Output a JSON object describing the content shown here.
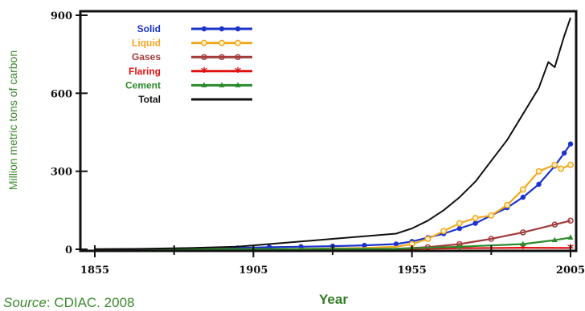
{
  "chart_data": {
    "type": "line",
    "title": "",
    "xlabel": "Year",
    "ylabel": "Million metric tons of carbon",
    "xlim": [
      1850,
      2007
    ],
    "ylim": [
      0,
      900
    ],
    "x_ticks": [
      1855,
      1905,
      1955,
      2005
    ],
    "y_ticks": [
      0,
      300,
      600,
      900
    ],
    "grid": false,
    "legend_position": "top-left",
    "series": [
      {
        "name": "Solid",
        "color": "#1a33cc",
        "marker": "dot",
        "x": [
          1855,
          1870,
          1885,
          1900,
          1910,
          1920,
          1930,
          1940,
          1950,
          1955,
          1960,
          1965,
          1970,
          1975,
          1980,
          1985,
          1990,
          1995,
          2000,
          2003,
          2005
        ],
        "y": [
          0,
          1,
          2,
          5,
          8,
          10,
          12,
          15,
          20,
          30,
          45,
          60,
          80,
          100,
          130,
          160,
          200,
          250,
          320,
          370,
          405
        ]
      },
      {
        "name": "Liquid",
        "color": "#f2a81d",
        "marker": "circle",
        "x": [
          1855,
          1900,
          1920,
          1940,
          1950,
          1955,
          1960,
          1965,
          1970,
          1975,
          1980,
          1985,
          1990,
          1995,
          2000,
          2002,
          2005
        ],
        "y": [
          0,
          0,
          2,
          5,
          10,
          20,
          40,
          70,
          100,
          120,
          130,
          170,
          230,
          300,
          325,
          310,
          325
        ]
      },
      {
        "name": "Gases",
        "color": "#a23b3b",
        "marker": "ring",
        "x": [
          1855,
          1950,
          1960,
          1970,
          1980,
          1990,
          2000,
          2005
        ],
        "y": [
          0,
          2,
          8,
          20,
          40,
          65,
          95,
          110
        ]
      },
      {
        "name": "Flaring",
        "color": "#e01010",
        "marker": "star",
        "x": [
          1855,
          1950,
          1970,
          1990,
          2005
        ],
        "y": [
          0,
          1,
          4,
          6,
          5
        ]
      },
      {
        "name": "Cement",
        "color": "#2b8a2b",
        "marker": "triangle",
        "x": [
          1855,
          1950,
          1970,
          1990,
          2000,
          2005
        ],
        "y": [
          0,
          2,
          10,
          20,
          35,
          45
        ]
      },
      {
        "name": "Total",
        "color": "#111111",
        "marker": "none",
        "x": [
          1855,
          1870,
          1885,
          1900,
          1910,
          1920,
          1930,
          1940,
          1950,
          1955,
          1960,
          1965,
          1970,
          1975,
          1980,
          1985,
          1990,
          1995,
          1998,
          2000,
          2003,
          2005
        ],
        "y": [
          0,
          2,
          5,
          10,
          20,
          30,
          40,
          50,
          60,
          80,
          110,
          150,
          200,
          260,
          340,
          420,
          520,
          620,
          720,
          700,
          820,
          890
        ]
      }
    ]
  },
  "source": {
    "prefix": "Source",
    "rest": ": CDIAC. 2008"
  }
}
